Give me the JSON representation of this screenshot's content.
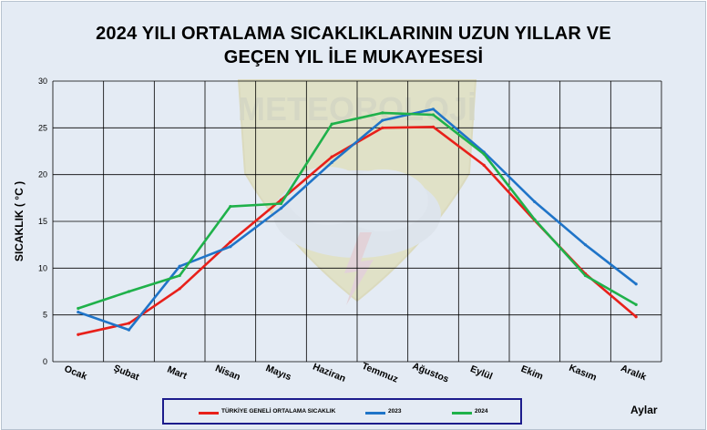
{
  "title_line1": "2024 YILI ORTALAMA SICAKLIKLARININ UZUN YILLAR VE",
  "title_line2": "GEÇEN  YIL İLE MUKAYESESİ",
  "watermark_text": "METEOROLOJİ",
  "chart_data": {
    "type": "line",
    "title": "2024 YILI ORTALAMA SICAKLIKLARININ UZUN YILLAR VE GEÇEN  YIL İLE MUKAYESESİ",
    "xlabel": "Aylar",
    "ylabel": "SICAKLIK ( °C )",
    "ylim": [
      0,
      30
    ],
    "yticks": [
      0,
      5,
      10,
      15,
      20,
      25,
      30
    ],
    "grid": true,
    "legend_position": "bottom",
    "categories": [
      "Ocak",
      "Şubat",
      "Mart",
      "Nisan",
      "Mayıs",
      "Haziran",
      "Temmuz",
      "Ağustos",
      "Eylül",
      "Ekim",
      "Kasım",
      "Aralık"
    ],
    "series": [
      {
        "name": "TÜRKİYE GENELİ ORTALAMA  SICAKLIK",
        "color": "#e8201a",
        "values": [
          2.9,
          4.1,
          7.8,
          12.8,
          17.3,
          21.9,
          25.0,
          25.1,
          21.0,
          15.1,
          9.4,
          4.8
        ]
      },
      {
        "name": "2023",
        "color": "#1f74c8",
        "values": [
          5.3,
          3.4,
          10.2,
          12.3,
          16.4,
          21.3,
          25.8,
          27.0,
          22.4,
          17.1,
          12.5,
          8.3
        ]
      },
      {
        "name": "2024",
        "color": "#1fb14a",
        "values": [
          5.7,
          7.5,
          9.2,
          16.6,
          16.9,
          25.4,
          26.6,
          26.4,
          22.2,
          15.2,
          9.2,
          6.1
        ]
      }
    ]
  }
}
